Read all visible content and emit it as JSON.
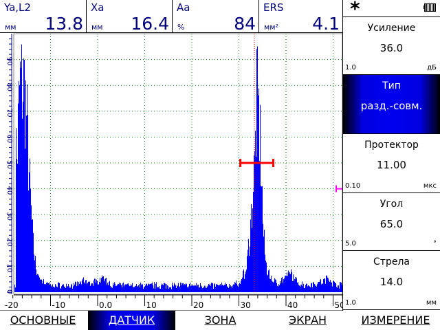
{
  "header": {
    "cells": [
      {
        "label": "Ya,L2",
        "unit": "мм",
        "value": "13.8"
      },
      {
        "label": "Xa",
        "unit": "мм",
        "value": "16.4"
      },
      {
        "label": "Aa",
        "unit": "%",
        "value": "84"
      },
      {
        "label": "ERS",
        "unit": "мм²",
        "value": "4.1"
      }
    ]
  },
  "status": {
    "icon": "asterisk-icon",
    "battery": "battery-icon"
  },
  "params": [
    {
      "title": "Усиление",
      "value": "36.0",
      "step": "1.0",
      "unit": "дБ"
    },
    {
      "title": "Тип",
      "value": "разд.-совм.",
      "selected": true
    },
    {
      "title": "Протектор",
      "value": "11.00",
      "step": "0.10",
      "unit": "мкс"
    },
    {
      "title": "Угол",
      "value": "65.0",
      "step": "5.0",
      "unit": "°"
    },
    {
      "title": "Стрела",
      "value": "14.0",
      "step": "1.0",
      "unit": "мм"
    }
  ],
  "menu": [
    {
      "label": "ОСНОВНЫЕ"
    },
    {
      "label": "ДАТЧИК",
      "selected": true
    },
    {
      "label": "ЗОНА"
    },
    {
      "label": "ЭКРАН"
    },
    {
      "label": "ИЗМЕРЕНИЕ"
    }
  ],
  "colors": {
    "signal": "#0000ff",
    "grid": "#008000",
    "gate": "#ff0000",
    "marker": "#ff00ff",
    "text": "#00007a"
  },
  "chart_data": {
    "type": "area",
    "xlim": [
      -18,
      52
    ],
    "ylim": [
      0,
      100
    ],
    "x_ticks": [
      "-20",
      "-10",
      "0.0",
      "10",
      "20",
      "30",
      "40",
      "50"
    ],
    "y_ticks": [
      "0",
      "10",
      "20",
      "30",
      "40",
      "50",
      "60",
      "70",
      "80",
      "90"
    ],
    "grid": true,
    "envelope": [
      [
        -17.5,
        75
      ],
      [
        -17.2,
        62
      ],
      [
        -16.6,
        100
      ],
      [
        -15.6,
        100
      ],
      [
        -15.2,
        88
      ],
      [
        -14.7,
        62
      ],
      [
        -14.2,
        40
      ],
      [
        -13.7,
        22
      ],
      [
        -13.2,
        13
      ],
      [
        -12.6,
        6
      ],
      [
        -11,
        3
      ],
      [
        -10,
        2
      ],
      [
        -5,
        2
      ],
      [
        -3,
        4
      ],
      [
        -1,
        3
      ],
      [
        1,
        6
      ],
      [
        2,
        4
      ],
      [
        3,
        2
      ],
      [
        10,
        2
      ],
      [
        20,
        2
      ],
      [
        28,
        2
      ],
      [
        30,
        3
      ],
      [
        31.5,
        10
      ],
      [
        32.5,
        35
      ],
      [
        33.3,
        62
      ],
      [
        33.7,
        93
      ],
      [
        34.2,
        86
      ],
      [
        34.7,
        60
      ],
      [
        35.1,
        30
      ],
      [
        35.6,
        15
      ],
      [
        36.2,
        8
      ],
      [
        37,
        5
      ],
      [
        38,
        3
      ],
      [
        40,
        6
      ],
      [
        41,
        8
      ],
      [
        42,
        4
      ],
      [
        44,
        2
      ],
      [
        48,
        4
      ],
      [
        49,
        6
      ],
      [
        50,
        3
      ],
      [
        52,
        2
      ]
    ],
    "gate": {
      "start": 30.3,
      "end": 37.3,
      "level": 50
    },
    "cursor_x": 33.3,
    "marker_level": 40
  }
}
